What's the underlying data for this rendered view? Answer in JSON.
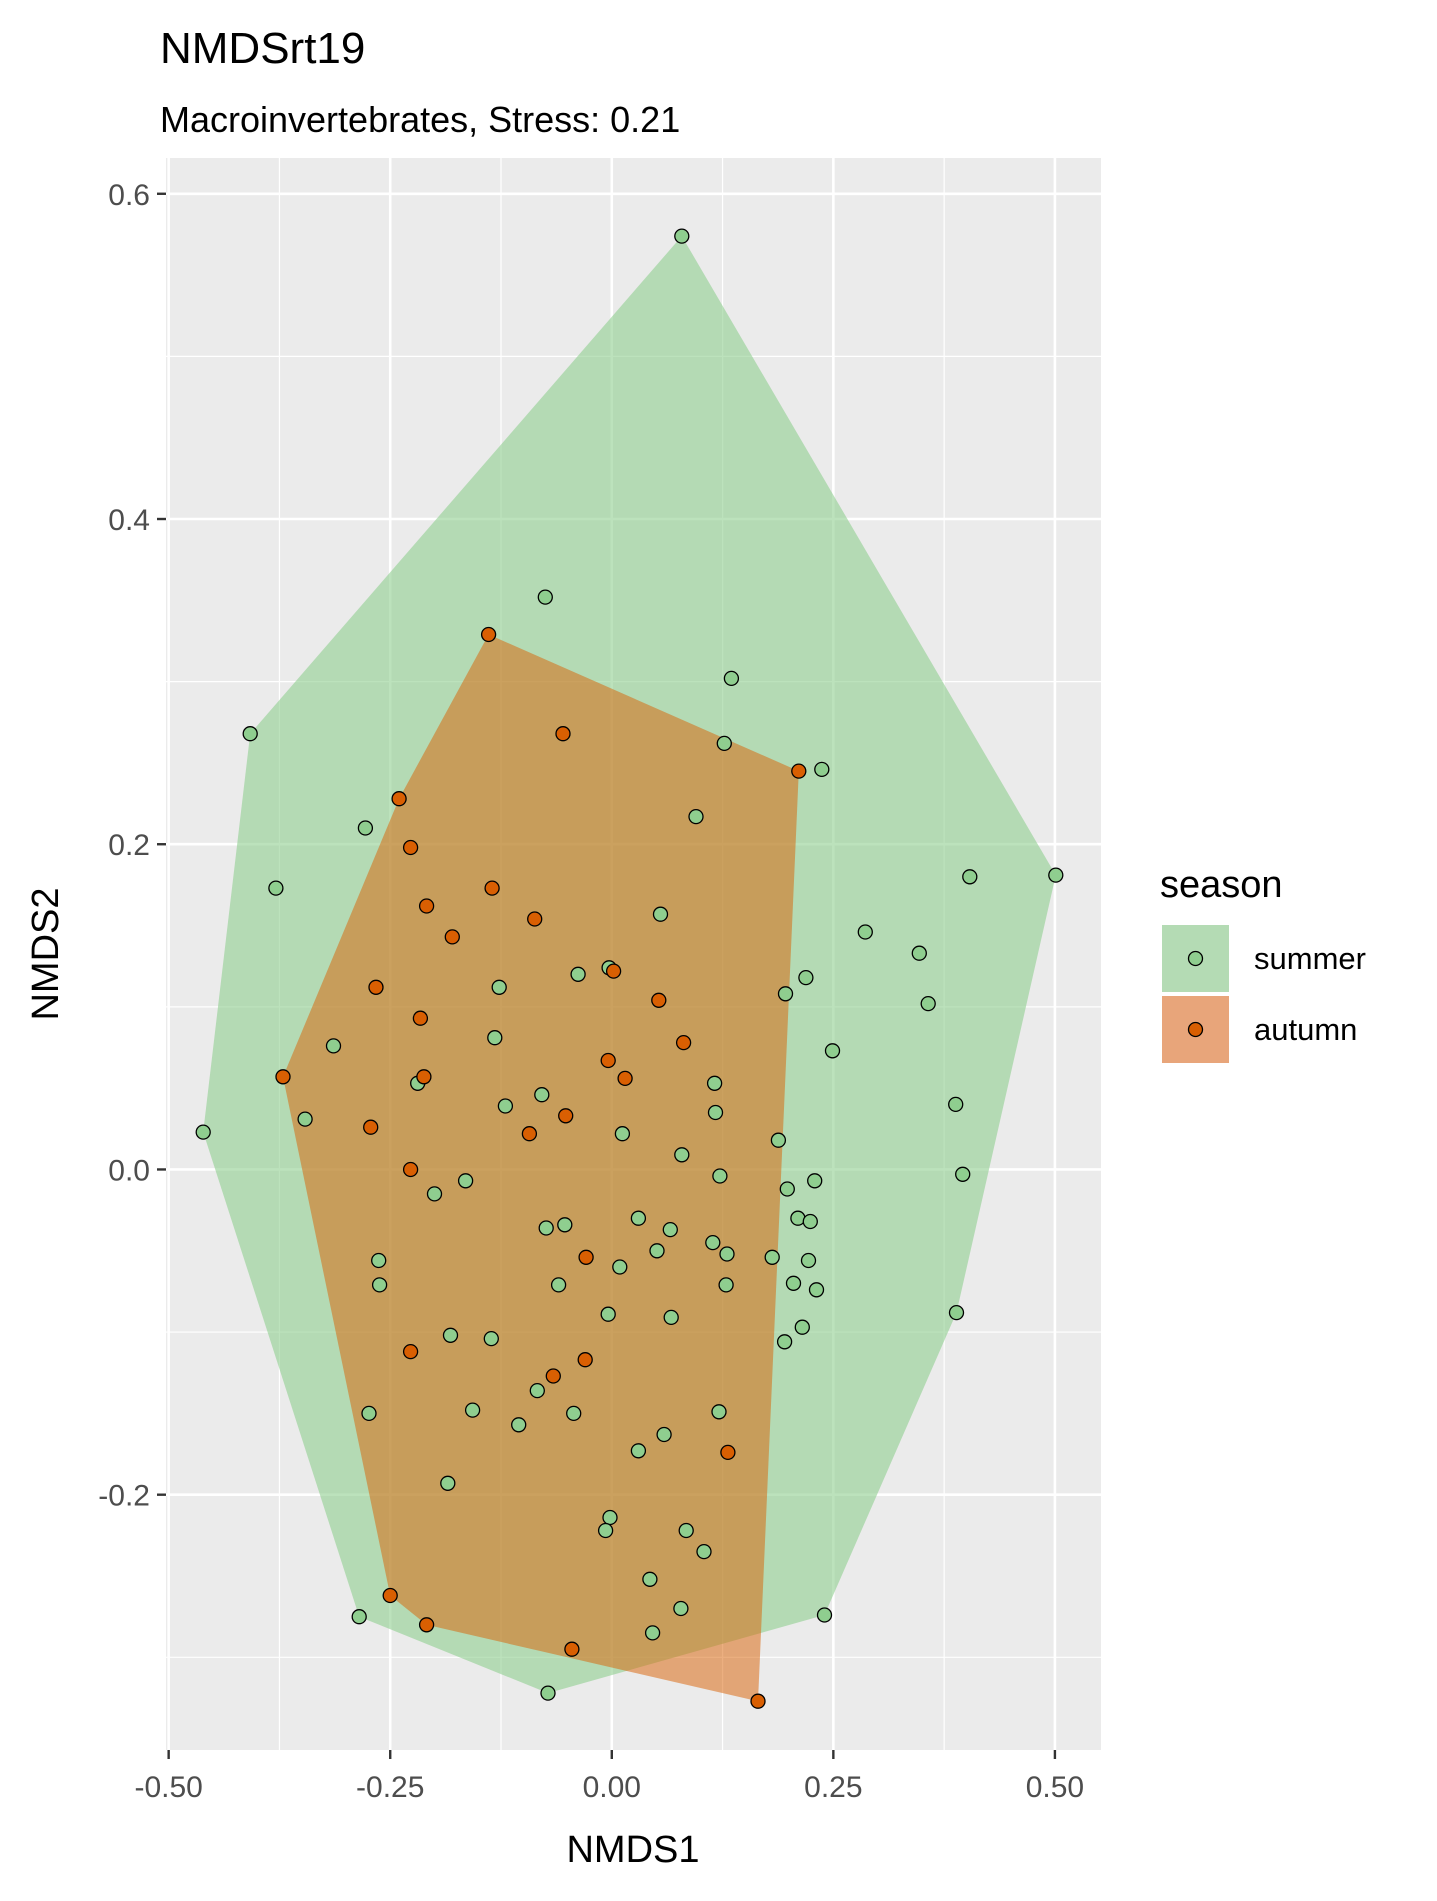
{
  "chart_data": {
    "type": "scatter",
    "title": "NMDSrt19",
    "subtitle": "Macroinvertebrates, Stress: 0.21",
    "xlabel": "NMDS1",
    "ylabel": "NMDS2",
    "xlim": [
      -0.503,
      0.552
    ],
    "ylim": [
      -0.357,
      0.622
    ],
    "x_ticks": [
      -0.5,
      -0.25,
      0.0,
      0.25,
      0.5
    ],
    "x_tick_labels": [
      "-0.50",
      "-0.25",
      "0.00",
      "0.25",
      "0.50"
    ],
    "y_ticks": [
      -0.2,
      0.0,
      0.2,
      0.4,
      0.6
    ],
    "y_tick_labels": [
      "-0.2",
      "0.0",
      "0.2",
      "0.4",
      "0.6"
    ],
    "grid": true,
    "panel_background": "#EBEBEB",
    "legend": {
      "title": "season",
      "position": "right",
      "entries": [
        {
          "label": "summer",
          "fill": "#B4DBB4",
          "point": "#8FCE8F"
        },
        {
          "label": "autumn",
          "fill": "#E8A57A",
          "point": "#D95F02"
        }
      ]
    },
    "series": [
      {
        "name": "summer",
        "point_color": "#8FCE8F",
        "hull_color": "#8FCE8F",
        "hull_opacity": 0.6,
        "points": [
          [
            0.079,
            0.574
          ],
          [
            -0.075,
            0.352
          ],
          [
            0.135,
            0.302
          ],
          [
            -0.408,
            0.268
          ],
          [
            0.127,
            0.262
          ],
          [
            0.237,
            0.246
          ],
          [
            0.095,
            0.217
          ],
          [
            -0.278,
            0.21
          ],
          [
            -0.379,
            0.173
          ],
          [
            0.404,
            0.18
          ],
          [
            0.501,
            0.181
          ],
          [
            0.055,
            0.157
          ],
          [
            0.286,
            0.146
          ],
          [
            0.347,
            0.133
          ],
          [
            -0.003,
            0.124
          ],
          [
            -0.038,
            0.12
          ],
          [
            0.219,
            0.118
          ],
          [
            -0.127,
            0.112
          ],
          [
            0.196,
            0.108
          ],
          [
            0.357,
            0.102
          ],
          [
            -0.132,
            0.081
          ],
          [
            -0.314,
            0.076
          ],
          [
            0.249,
            0.073
          ],
          [
            0.116,
            0.053
          ],
          [
            -0.219,
            0.053
          ],
          [
            -0.079,
            0.046
          ],
          [
            -0.12,
            0.039
          ],
          [
            0.388,
            0.04
          ],
          [
            0.117,
            0.035
          ],
          [
            -0.346,
            0.031
          ],
          [
            -0.461,
            0.023
          ],
          [
            0.012,
            0.022
          ],
          [
            0.188,
            0.018
          ],
          [
            0.079,
            0.009
          ],
          [
            0.122,
            -0.004
          ],
          [
            -0.165,
            -0.007
          ],
          [
            0.229,
            -0.007
          ],
          [
            0.396,
            -0.003
          ],
          [
            0.198,
            -0.012
          ],
          [
            -0.2,
            -0.015
          ],
          [
            0.03,
            -0.03
          ],
          [
            0.21,
            -0.03
          ],
          [
            0.224,
            -0.032
          ],
          [
            -0.053,
            -0.034
          ],
          [
            -0.074,
            -0.036
          ],
          [
            0.066,
            -0.037
          ],
          [
            0.114,
            -0.045
          ],
          [
            0.051,
            -0.05
          ],
          [
            0.13,
            -0.052
          ],
          [
            0.181,
            -0.054
          ],
          [
            -0.263,
            -0.056
          ],
          [
            0.222,
            -0.056
          ],
          [
            0.009,
            -0.06
          ],
          [
            0.205,
            -0.07
          ],
          [
            -0.262,
            -0.071
          ],
          [
            -0.06,
            -0.071
          ],
          [
            0.129,
            -0.071
          ],
          [
            0.231,
            -0.074
          ],
          [
            -0.004,
            -0.089
          ],
          [
            0.389,
            -0.088
          ],
          [
            0.067,
            -0.091
          ],
          [
            0.215,
            -0.097
          ],
          [
            -0.182,
            -0.102
          ],
          [
            -0.136,
            -0.104
          ],
          [
            0.195,
            -0.106
          ],
          [
            -0.084,
            -0.136
          ],
          [
            -0.157,
            -0.148
          ],
          [
            0.121,
            -0.149
          ],
          [
            -0.274,
            -0.15
          ],
          [
            -0.043,
            -0.15
          ],
          [
            -0.105,
            -0.157
          ],
          [
            0.059,
            -0.163
          ],
          [
            0.03,
            -0.173
          ],
          [
            -0.185,
            -0.193
          ],
          [
            -0.002,
            -0.214
          ],
          [
            0.084,
            -0.222
          ],
          [
            -0.007,
            -0.222
          ],
          [
            0.104,
            -0.235
          ],
          [
            0.043,
            -0.252
          ],
          [
            0.078,
            -0.27
          ],
          [
            -0.285,
            -0.275
          ],
          [
            0.24,
            -0.274
          ],
          [
            0.046,
            -0.285
          ],
          [
            -0.072,
            -0.322
          ]
        ]
      },
      {
        "name": "autumn",
        "point_color": "#D95F02",
        "hull_color": "#D95F02",
        "hull_opacity": 0.5,
        "points": [
          [
            -0.139,
            0.329
          ],
          [
            -0.055,
            0.268
          ],
          [
            0.211,
            0.245
          ],
          [
            -0.24,
            0.228
          ],
          [
            -0.227,
            0.198
          ],
          [
            -0.135,
            0.173
          ],
          [
            -0.209,
            0.162
          ],
          [
            -0.087,
            0.154
          ],
          [
            -0.18,
            0.143
          ],
          [
            0.002,
            0.122
          ],
          [
            -0.266,
            0.112
          ],
          [
            0.053,
            0.104
          ],
          [
            -0.216,
            0.093
          ],
          [
            0.081,
            0.078
          ],
          [
            -0.004,
            0.067
          ],
          [
            -0.371,
            0.057
          ],
          [
            -0.212,
            0.057
          ],
          [
            0.015,
            0.056
          ],
          [
            -0.052,
            0.033
          ],
          [
            -0.272,
            0.026
          ],
          [
            -0.093,
            0.022
          ],
          [
            -0.227,
            0.0
          ],
          [
            -0.029,
            -0.054
          ],
          [
            -0.227,
            -0.112
          ],
          [
            -0.03,
            -0.117
          ],
          [
            -0.066,
            -0.127
          ],
          [
            0.131,
            -0.174
          ],
          [
            -0.25,
            -0.262
          ],
          [
            -0.209,
            -0.28
          ],
          [
            -0.045,
            -0.295
          ],
          [
            0.165,
            -0.327
          ]
        ]
      }
    ]
  }
}
